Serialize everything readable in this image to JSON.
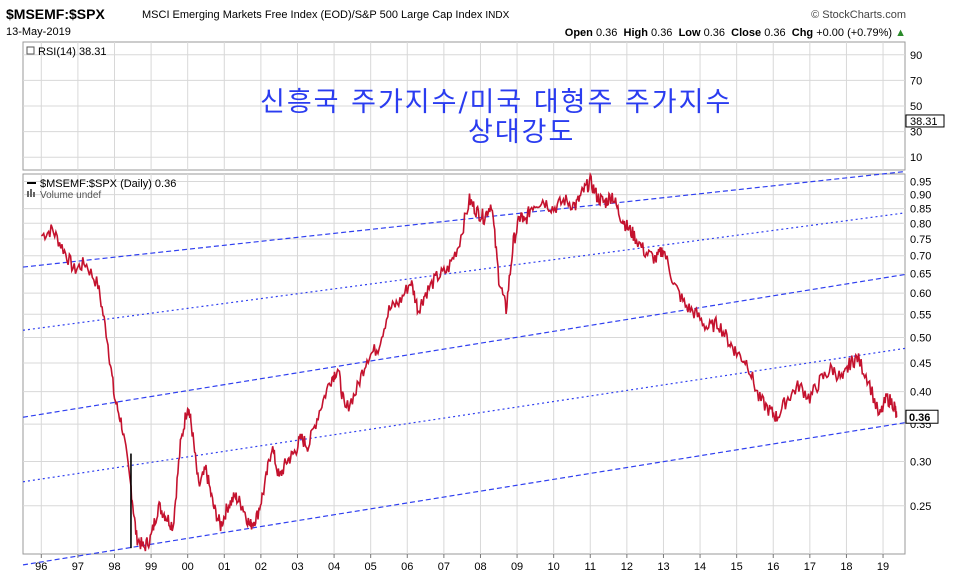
{
  "header": {
    "symbol": "$MSEMF:$SPX",
    "description": "MSCI Emerging Markets Free Index (EOD)/S&P 500 Large Cap Index",
    "exchange": "INDX",
    "date": "13-May-2019",
    "source": "© StockCharts.com",
    "open_label": "Open",
    "open": "0.36",
    "high_label": "High",
    "high": "0.36",
    "low_label": "Low",
    "low": "0.36",
    "close_label": "Close",
    "close": "0.36",
    "chg_label": "Chg",
    "chg": "+0.00 (+0.79%)"
  },
  "annotation": {
    "line1": "신흥국 주가지수/미국 대형주 주가지수",
    "line2": "상대강도"
  },
  "colors": {
    "price": "#c4122e",
    "channel": "#3040f0",
    "grid": "#d8d8d8",
    "background": "#ffffff",
    "rsi": "#000000"
  },
  "chart_data": [
    {
      "type": "line",
      "panel": "indicator",
      "title": "RSI(14) 38.31",
      "series_name": "RSI(14)",
      "last_value": 38.31,
      "last_value_label": "38.31",
      "y_ticks": [
        10,
        30,
        50,
        70,
        90
      ],
      "ylim": [
        0,
        100
      ]
    },
    {
      "type": "line",
      "panel": "price",
      "title": "$MSEMF:$SPX (Daily) 0.36",
      "legend": [
        "$MSEMF:$SPX (Daily) 0.36",
        "Volume undef"
      ],
      "y_scale": "log",
      "ylim": [
        0.205,
        0.98
      ],
      "y_ticks": [
        0.25,
        0.3,
        0.35,
        0.4,
        0.45,
        0.5,
        0.55,
        0.6,
        0.65,
        0.7,
        0.75,
        0.8,
        0.85,
        0.9,
        0.95
      ],
      "x_ticks": [
        "96",
        "97",
        "98",
        "99",
        "00",
        "01",
        "02",
        "03",
        "04",
        "05",
        "06",
        "07",
        "08",
        "09",
        "10",
        "11",
        "12",
        "13",
        "14",
        "15",
        "16",
        "17",
        "18",
        "19"
      ],
      "xlim": [
        1995.5,
        2019.6
      ],
      "last_value": 0.36,
      "last_value_label": "0.36",
      "x": [
        1996.0,
        1996.3,
        1996.6,
        1996.9,
        1997.2,
        1997.55,
        1997.8,
        1998.0,
        1998.2,
        1998.45,
        1998.6,
        1998.8,
        1999.0,
        1999.2,
        1999.4,
        1999.6,
        1999.8,
        2000.0,
        2000.1,
        2000.3,
        2000.5,
        2000.7,
        2000.9,
        2001.1,
        2001.3,
        2001.5,
        2001.7,
        2001.9,
        2002.1,
        2002.3,
        2002.5,
        2002.7,
        2002.9,
        2003.1,
        2003.3,
        2003.6,
        2003.9,
        2004.1,
        2004.3,
        2004.6,
        2004.9,
        2005.2,
        2005.5,
        2005.8,
        2006.1,
        2006.3,
        2006.5,
        2006.8,
        2007.1,
        2007.4,
        2007.7,
        2007.9,
        2008.1,
        2008.3,
        2008.5,
        2008.7,
        2008.9,
        2009.1,
        2009.2,
        2009.4,
        2009.7,
        2010.0,
        2010.3,
        2010.6,
        2010.8,
        2011.0,
        2011.2,
        2011.4,
        2011.6,
        2011.8,
        2012.0,
        2012.2,
        2012.5,
        2012.8,
        2013.0,
        2013.3,
        2013.6,
        2013.9,
        2014.2,
        2014.5,
        2014.8,
        2015.0,
        2015.3,
        2015.6,
        2015.9,
        2016.1,
        2016.4,
        2016.7,
        2017.0,
        2017.3,
        2017.6,
        2017.9,
        2018.1,
        2018.3,
        2018.6,
        2018.9,
        2019.1,
        2019.3,
        2019.37
      ],
      "values": [
        0.76,
        0.78,
        0.72,
        0.66,
        0.68,
        0.62,
        0.5,
        0.39,
        0.35,
        0.27,
        0.22,
        0.21,
        0.22,
        0.25,
        0.24,
        0.23,
        0.32,
        0.38,
        0.35,
        0.27,
        0.29,
        0.25,
        0.23,
        0.25,
        0.26,
        0.25,
        0.23,
        0.24,
        0.27,
        0.32,
        0.28,
        0.3,
        0.31,
        0.33,
        0.32,
        0.37,
        0.42,
        0.44,
        0.37,
        0.4,
        0.46,
        0.48,
        0.56,
        0.58,
        0.63,
        0.56,
        0.6,
        0.64,
        0.66,
        0.73,
        0.88,
        0.84,
        0.82,
        0.87,
        0.64,
        0.56,
        0.74,
        0.83,
        0.8,
        0.86,
        0.88,
        0.85,
        0.88,
        0.86,
        0.91,
        0.95,
        0.89,
        0.87,
        0.9,
        0.83,
        0.79,
        0.76,
        0.71,
        0.69,
        0.72,
        0.62,
        0.57,
        0.55,
        0.52,
        0.53,
        0.49,
        0.47,
        0.45,
        0.39,
        0.37,
        0.36,
        0.39,
        0.41,
        0.39,
        0.42,
        0.44,
        0.42,
        0.45,
        0.46,
        0.42,
        0.36,
        0.39,
        0.38,
        0.36
      ],
      "channel_lines": [
        {
          "style": "dashed",
          "start": [
            1995.5,
            0.668
          ],
          "end": [
            2019.6,
            0.99
          ]
        },
        {
          "style": "dotted",
          "start": [
            1995.5,
            0.515
          ],
          "end": [
            2019.6,
            0.835
          ]
        },
        {
          "style": "dashed",
          "start": [
            1995.5,
            0.36
          ],
          "end": [
            2019.6,
            0.648
          ]
        },
        {
          "style": "dotted",
          "start": [
            1995.5,
            0.276
          ],
          "end": [
            2019.6,
            0.478
          ]
        },
        {
          "style": "dashed",
          "start": [
            1995.5,
            0.196
          ],
          "end": [
            2019.6,
            0.352
          ]
        }
      ]
    }
  ]
}
